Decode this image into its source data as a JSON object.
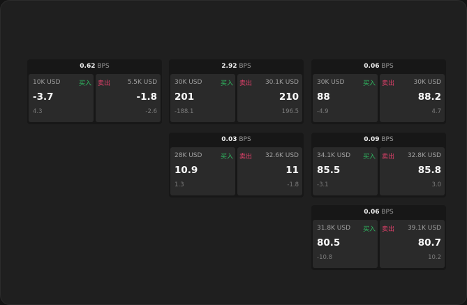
{
  "unit": "BPS",
  "buy_label": "买入",
  "sell_label": "卖出",
  "colors": {
    "buy": "#2fb860",
    "sell": "#e0406a"
  },
  "widgets": [
    {
      "spread": "0.62",
      "buy": {
        "amount": "10K USD",
        "price": "-3.7",
        "change": "4.3"
      },
      "sell": {
        "amount": "5.5K USD",
        "price": "-1.8",
        "change": "-2.6"
      }
    },
    {
      "spread": "2.92",
      "buy": {
        "amount": "30K USD",
        "price": "201",
        "change": "-188.1"
      },
      "sell": {
        "amount": "30.1K USD",
        "price": "210",
        "change": "196.5"
      }
    },
    {
      "spread": "0.06",
      "buy": {
        "amount": "30K USD",
        "price": "88",
        "change": "-4.9"
      },
      "sell": {
        "amount": "30K USD",
        "price": "88.2",
        "change": "4.7"
      }
    },
    {
      "spread": "0.03",
      "buy": {
        "amount": "28K USD",
        "price": "10.9",
        "change": "1.3"
      },
      "sell": {
        "amount": "32.6K USD",
        "price": "11",
        "change": "-1.8"
      }
    },
    {
      "spread": "0.09",
      "buy": {
        "amount": "34.1K USD",
        "price": "85.5",
        "change": "-3.1"
      },
      "sell": {
        "amount": "32.8K USD",
        "price": "85.8",
        "change": "3.0"
      }
    },
    {
      "spread": "0.06",
      "buy": {
        "amount": "31.8K USD",
        "price": "80.5",
        "change": "-10.8"
      },
      "sell": {
        "amount": "39.1K USD",
        "price": "80.7",
        "change": "10.2"
      }
    }
  ]
}
